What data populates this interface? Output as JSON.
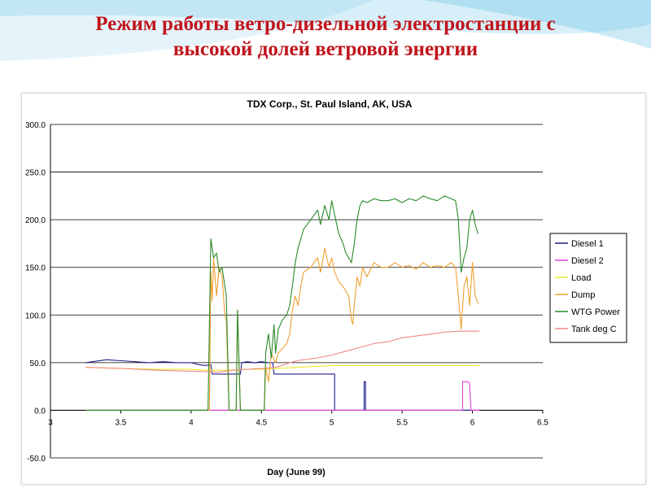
{
  "slide": {
    "title_line1": "Режим работы ветро-дизельной электростанции с",
    "title_line2": "высокой долей ветровой энергии",
    "title_color": "#c0141c",
    "background_accent": "#4bb8e0"
  },
  "chart_data": {
    "type": "line",
    "title": "TDX Corp., St. Paul Island, AK, USA",
    "xlabel": "Day (June 99)",
    "ylabel": "",
    "xlim": [
      3,
      6.5
    ],
    "ylim": [
      -50,
      300
    ],
    "x_ticks": [
      3,
      3.5,
      4,
      4.5,
      5,
      5.5,
      6,
      6.5
    ],
    "x_tick_labels": [
      "3",
      "3.5",
      "4",
      "4.5",
      "5",
      "5.5",
      "6",
      "6.5"
    ],
    "y_ticks": [
      -50,
      0,
      50,
      100,
      150,
      200,
      250,
      300
    ],
    "y_tick_labels": [
      "-50.0",
      "0.0",
      "50.0",
      "100.0",
      "150.0",
      "200.0",
      "250.0",
      "300.0"
    ],
    "grid": "horizontal",
    "legend_position": "right",
    "series": [
      {
        "name": "Diesel 1",
        "color": "#1f1f8c",
        "points": [
          [
            3.25,
            50
          ],
          [
            3.3,
            51
          ],
          [
            3.4,
            53
          ],
          [
            3.5,
            52
          ],
          [
            3.6,
            51
          ],
          [
            3.7,
            50
          ],
          [
            3.8,
            51
          ],
          [
            3.9,
            50
          ],
          [
            4.0,
            50
          ],
          [
            4.05,
            48
          ],
          [
            4.1,
            47
          ],
          [
            4.14,
            48
          ],
          [
            4.15,
            38
          ],
          [
            4.2,
            38
          ],
          [
            4.3,
            38
          ],
          [
            4.35,
            38
          ],
          [
            4.36,
            50
          ],
          [
            4.4,
            51
          ],
          [
            4.45,
            50
          ],
          [
            4.5,
            51
          ],
          [
            4.55,
            50
          ],
          [
            4.58,
            50
          ],
          [
            4.59,
            38
          ],
          [
            4.7,
            38
          ],
          [
            4.8,
            38
          ],
          [
            4.9,
            38
          ],
          [
            5.0,
            38
          ],
          [
            5.02,
            38
          ],
          [
            5.02,
            0
          ],
          [
            5.2,
            0
          ],
          [
            5.23,
            0
          ],
          [
            5.23,
            30
          ],
          [
            5.24,
            30
          ],
          [
            5.24,
            0
          ],
          [
            5.6,
            0
          ],
          [
            6.0,
            0
          ],
          [
            6.05,
            0
          ]
        ]
      },
      {
        "name": "Diesel 2",
        "color": "#e040e0",
        "points": [
          [
            3.25,
            0
          ],
          [
            3.5,
            0
          ],
          [
            4.0,
            0
          ],
          [
            4.5,
            0
          ],
          [
            5.0,
            0
          ],
          [
            5.5,
            0
          ],
          [
            5.93,
            0
          ],
          [
            5.93,
            30
          ],
          [
            5.97,
            30
          ],
          [
            5.98,
            28
          ],
          [
            5.99,
            0
          ],
          [
            6.05,
            0
          ]
        ]
      },
      {
        "name": "Load",
        "color": "#e8e828",
        "points": [
          [
            3.25,
            45
          ],
          [
            3.5,
            44
          ],
          [
            3.75,
            43
          ],
          [
            4.0,
            43
          ],
          [
            4.1,
            42
          ],
          [
            4.25,
            42
          ],
          [
            4.4,
            43
          ],
          [
            4.5,
            43
          ],
          [
            4.75,
            45
          ],
          [
            5.0,
            47
          ],
          [
            5.25,
            47
          ],
          [
            5.5,
            47
          ],
          [
            5.75,
            47
          ],
          [
            6.0,
            47
          ],
          [
            6.05,
            47
          ]
        ]
      },
      {
        "name": "Dump",
        "color": "#f0a030",
        "points": [
          [
            3.25,
            0
          ],
          [
            4.0,
            0
          ],
          [
            4.13,
            0
          ],
          [
            4.14,
            145
          ],
          [
            4.15,
            115
          ],
          [
            4.16,
            160
          ],
          [
            4.18,
            120
          ],
          [
            4.2,
            150
          ],
          [
            4.22,
            140
          ],
          [
            4.24,
            100
          ],
          [
            4.25,
            95
          ],
          [
            4.27,
            0
          ],
          [
            4.32,
            0
          ],
          [
            4.33,
            105
          ],
          [
            4.35,
            0
          ],
          [
            4.5,
            0
          ],
          [
            4.52,
            0
          ],
          [
            4.53,
            45
          ],
          [
            4.55,
            30
          ],
          [
            4.57,
            60
          ],
          [
            4.6,
            50
          ],
          [
            4.62,
            60
          ],
          [
            4.65,
            65
          ],
          [
            4.68,
            70
          ],
          [
            4.7,
            80
          ],
          [
            4.72,
            105
          ],
          [
            4.74,
            120
          ],
          [
            4.76,
            110
          ],
          [
            4.78,
            130
          ],
          [
            4.8,
            145
          ],
          [
            4.85,
            150
          ],
          [
            4.9,
            160
          ],
          [
            4.92,
            145
          ],
          [
            4.95,
            170
          ],
          [
            4.98,
            150
          ],
          [
            5.0,
            160
          ],
          [
            5.02,
            145
          ],
          [
            5.05,
            135
          ],
          [
            5.08,
            130
          ],
          [
            5.1,
            125
          ],
          [
            5.12,
            120
          ],
          [
            5.14,
            95
          ],
          [
            5.15,
            90
          ],
          [
            5.16,
            110
          ],
          [
            5.18,
            140
          ],
          [
            5.2,
            130
          ],
          [
            5.22,
            150
          ],
          [
            5.25,
            140
          ],
          [
            5.3,
            155
          ],
          [
            5.35,
            150
          ],
          [
            5.4,
            150
          ],
          [
            5.45,
            155
          ],
          [
            5.5,
            150
          ],
          [
            5.55,
            152
          ],
          [
            5.6,
            148
          ],
          [
            5.65,
            155
          ],
          [
            5.7,
            150
          ],
          [
            5.75,
            152
          ],
          [
            5.8,
            150
          ],
          [
            5.85,
            155
          ],
          [
            5.88,
            150
          ],
          [
            5.9,
            120
          ],
          [
            5.92,
            85
          ],
          [
            5.94,
            130
          ],
          [
            5.96,
            140
          ],
          [
            5.98,
            110
          ],
          [
            6.0,
            155
          ],
          [
            6.02,
            120
          ],
          [
            6.04,
            112
          ]
        ]
      },
      {
        "name": "WTG Power",
        "color": "#2a8a2a",
        "points": [
          [
            3.25,
            0
          ],
          [
            4.0,
            0
          ],
          [
            4.12,
            0
          ],
          [
            4.14,
            180
          ],
          [
            4.16,
            160
          ],
          [
            4.18,
            165
          ],
          [
            4.2,
            145
          ],
          [
            4.22,
            150
          ],
          [
            4.24,
            130
          ],
          [
            4.25,
            120
          ],
          [
            4.27,
            0
          ],
          [
            4.32,
            0
          ],
          [
            4.33,
            105
          ],
          [
            4.35,
            0
          ],
          [
            4.5,
            0
          ],
          [
            4.52,
            0
          ],
          [
            4.53,
            60
          ],
          [
            4.55,
            80
          ],
          [
            4.57,
            55
          ],
          [
            4.59,
            90
          ],
          [
            4.6,
            60
          ],
          [
            4.62,
            85
          ],
          [
            4.65,
            95
          ],
          [
            4.68,
            100
          ],
          [
            4.7,
            110
          ],
          [
            4.72,
            130
          ],
          [
            4.74,
            155
          ],
          [
            4.76,
            170
          ],
          [
            4.78,
            180
          ],
          [
            4.8,
            190
          ],
          [
            4.85,
            200
          ],
          [
            4.9,
            210
          ],
          [
            4.92,
            195
          ],
          [
            4.95,
            215
          ],
          [
            4.98,
            200
          ],
          [
            5.0,
            220
          ],
          [
            5.02,
            205
          ],
          [
            5.05,
            185
          ],
          [
            5.08,
            175
          ],
          [
            5.1,
            165
          ],
          [
            5.12,
            160
          ],
          [
            5.14,
            155
          ],
          [
            5.16,
            175
          ],
          [
            5.18,
            200
          ],
          [
            5.2,
            215
          ],
          [
            5.22,
            220
          ],
          [
            5.25,
            218
          ],
          [
            5.3,
            222
          ],
          [
            5.35,
            220
          ],
          [
            5.4,
            220
          ],
          [
            5.45,
            222
          ],
          [
            5.5,
            218
          ],
          [
            5.55,
            222
          ],
          [
            5.6,
            220
          ],
          [
            5.65,
            225
          ],
          [
            5.7,
            222
          ],
          [
            5.75,
            220
          ],
          [
            5.8,
            225
          ],
          [
            5.85,
            222
          ],
          [
            5.88,
            220
          ],
          [
            5.9,
            200
          ],
          [
            5.92,
            145
          ],
          [
            5.94,
            160
          ],
          [
            5.96,
            170
          ],
          [
            5.98,
            200
          ],
          [
            6.0,
            210
          ],
          [
            6.02,
            195
          ],
          [
            6.04,
            185
          ]
        ]
      },
      {
        "name": "Tank deg C",
        "color": "#f08888",
        "points": [
          [
            3.25,
            45
          ],
          [
            3.5,
            44
          ],
          [
            3.75,
            42
          ],
          [
            4.0,
            41
          ],
          [
            4.2,
            40
          ],
          [
            4.3,
            42
          ],
          [
            4.5,
            44
          ],
          [
            4.6,
            45
          ],
          [
            4.75,
            52
          ],
          [
            4.9,
            55
          ],
          [
            5.0,
            58
          ],
          [
            5.1,
            62
          ],
          [
            5.2,
            66
          ],
          [
            5.3,
            70
          ],
          [
            5.4,
            72
          ],
          [
            5.5,
            76
          ],
          [
            5.6,
            78
          ],
          [
            5.7,
            80
          ],
          [
            5.8,
            82
          ],
          [
            5.9,
            83
          ],
          [
            6.0,
            83
          ],
          [
            6.05,
            83
          ]
        ]
      }
    ]
  }
}
